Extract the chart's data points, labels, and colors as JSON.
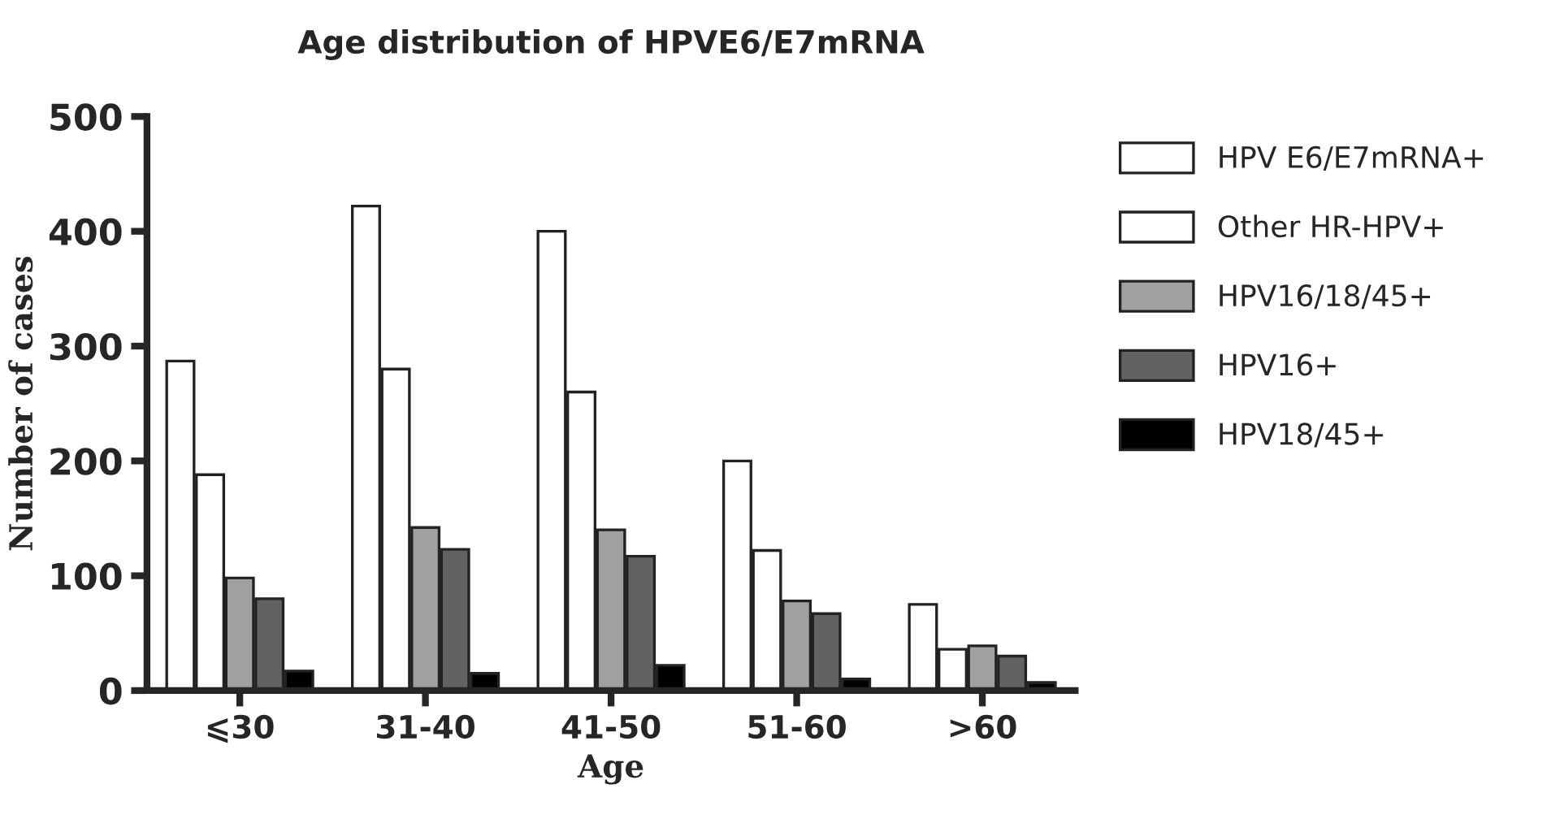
{
  "chart_data": {
    "type": "bar",
    "title": "Age distribution of HPVE6/E7mRNA",
    "xlabel": "Age",
    "ylabel": "Number of cases",
    "categories": [
      "⩽30",
      "31-40",
      "41-50",
      "51-60",
      ">60"
    ],
    "series": [
      {
        "name": "HPV E6/E7mRNA+",
        "color": "#ffffff",
        "values": [
          287,
          422,
          400,
          200,
          75
        ]
      },
      {
        "name": "Other HR-HPV+",
        "color": "#ffffff",
        "values": [
          188,
          280,
          260,
          122,
          36
        ]
      },
      {
        "name": "HPV16/18/45+",
        "color": "#a0a0a0",
        "values": [
          98,
          142,
          140,
          78,
          39
        ]
      },
      {
        "name": "HPV16+",
        "color": "#626262",
        "values": [
          80,
          123,
          117,
          67,
          30
        ]
      },
      {
        "name": "HPV18/45+",
        "color": "#000000",
        "values": [
          17,
          15,
          22,
          10,
          7
        ]
      }
    ],
    "ylim": [
      0,
      500
    ],
    "yticks": [
      0,
      100,
      200,
      300,
      400,
      500
    ],
    "grid": false,
    "legend": "right"
  }
}
